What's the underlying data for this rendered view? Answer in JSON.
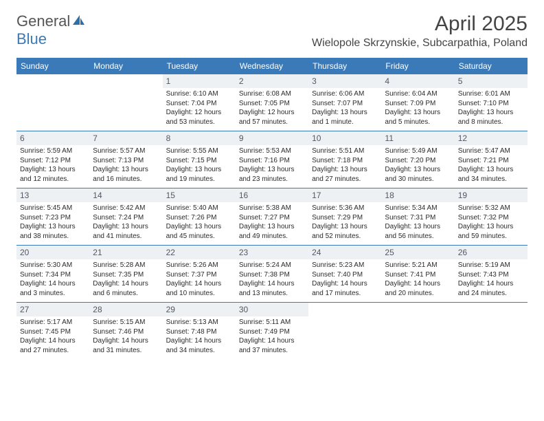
{
  "brand": {
    "name_1": "General",
    "name_2": "Blue"
  },
  "title": "April 2025",
  "location": "Wielopole Skrzynskie, Subcarpathia, Poland",
  "colors": {
    "header_bg": "#3a7ab8",
    "header_text": "#ffffff",
    "daynum_bg": "#eef1f3",
    "border": "#3a7ab8",
    "body_text": "#2a2a2a",
    "title_text": "#444444"
  },
  "typography": {
    "month_title_fontsize": 30,
    "location_fontsize": 16,
    "day_header_fontsize": 12,
    "cell_fontsize": 10
  },
  "day_names": [
    "Sunday",
    "Monday",
    "Tuesday",
    "Wednesday",
    "Thursday",
    "Friday",
    "Saturday"
  ],
  "weeks": [
    [
      {
        "n": "",
        "sunrise": "",
        "sunset": "",
        "daylight": ""
      },
      {
        "n": "",
        "sunrise": "",
        "sunset": "",
        "daylight": ""
      },
      {
        "n": "1",
        "sunrise": "Sunrise: 6:10 AM",
        "sunset": "Sunset: 7:04 PM",
        "daylight": "Daylight: 12 hours and 53 minutes."
      },
      {
        "n": "2",
        "sunrise": "Sunrise: 6:08 AM",
        "sunset": "Sunset: 7:05 PM",
        "daylight": "Daylight: 12 hours and 57 minutes."
      },
      {
        "n": "3",
        "sunrise": "Sunrise: 6:06 AM",
        "sunset": "Sunset: 7:07 PM",
        "daylight": "Daylight: 13 hours and 1 minute."
      },
      {
        "n": "4",
        "sunrise": "Sunrise: 6:04 AM",
        "sunset": "Sunset: 7:09 PM",
        "daylight": "Daylight: 13 hours and 5 minutes."
      },
      {
        "n": "5",
        "sunrise": "Sunrise: 6:01 AM",
        "sunset": "Sunset: 7:10 PM",
        "daylight": "Daylight: 13 hours and 8 minutes."
      }
    ],
    [
      {
        "n": "6",
        "sunrise": "Sunrise: 5:59 AM",
        "sunset": "Sunset: 7:12 PM",
        "daylight": "Daylight: 13 hours and 12 minutes."
      },
      {
        "n": "7",
        "sunrise": "Sunrise: 5:57 AM",
        "sunset": "Sunset: 7:13 PM",
        "daylight": "Daylight: 13 hours and 16 minutes."
      },
      {
        "n": "8",
        "sunrise": "Sunrise: 5:55 AM",
        "sunset": "Sunset: 7:15 PM",
        "daylight": "Daylight: 13 hours and 19 minutes."
      },
      {
        "n": "9",
        "sunrise": "Sunrise: 5:53 AM",
        "sunset": "Sunset: 7:16 PM",
        "daylight": "Daylight: 13 hours and 23 minutes."
      },
      {
        "n": "10",
        "sunrise": "Sunrise: 5:51 AM",
        "sunset": "Sunset: 7:18 PM",
        "daylight": "Daylight: 13 hours and 27 minutes."
      },
      {
        "n": "11",
        "sunrise": "Sunrise: 5:49 AM",
        "sunset": "Sunset: 7:20 PM",
        "daylight": "Daylight: 13 hours and 30 minutes."
      },
      {
        "n": "12",
        "sunrise": "Sunrise: 5:47 AM",
        "sunset": "Sunset: 7:21 PM",
        "daylight": "Daylight: 13 hours and 34 minutes."
      }
    ],
    [
      {
        "n": "13",
        "sunrise": "Sunrise: 5:45 AM",
        "sunset": "Sunset: 7:23 PM",
        "daylight": "Daylight: 13 hours and 38 minutes."
      },
      {
        "n": "14",
        "sunrise": "Sunrise: 5:42 AM",
        "sunset": "Sunset: 7:24 PM",
        "daylight": "Daylight: 13 hours and 41 minutes."
      },
      {
        "n": "15",
        "sunrise": "Sunrise: 5:40 AM",
        "sunset": "Sunset: 7:26 PM",
        "daylight": "Daylight: 13 hours and 45 minutes."
      },
      {
        "n": "16",
        "sunrise": "Sunrise: 5:38 AM",
        "sunset": "Sunset: 7:27 PM",
        "daylight": "Daylight: 13 hours and 49 minutes."
      },
      {
        "n": "17",
        "sunrise": "Sunrise: 5:36 AM",
        "sunset": "Sunset: 7:29 PM",
        "daylight": "Daylight: 13 hours and 52 minutes."
      },
      {
        "n": "18",
        "sunrise": "Sunrise: 5:34 AM",
        "sunset": "Sunset: 7:31 PM",
        "daylight": "Daylight: 13 hours and 56 minutes."
      },
      {
        "n": "19",
        "sunrise": "Sunrise: 5:32 AM",
        "sunset": "Sunset: 7:32 PM",
        "daylight": "Daylight: 13 hours and 59 minutes."
      }
    ],
    [
      {
        "n": "20",
        "sunrise": "Sunrise: 5:30 AM",
        "sunset": "Sunset: 7:34 PM",
        "daylight": "Daylight: 14 hours and 3 minutes."
      },
      {
        "n": "21",
        "sunrise": "Sunrise: 5:28 AM",
        "sunset": "Sunset: 7:35 PM",
        "daylight": "Daylight: 14 hours and 6 minutes."
      },
      {
        "n": "22",
        "sunrise": "Sunrise: 5:26 AM",
        "sunset": "Sunset: 7:37 PM",
        "daylight": "Daylight: 14 hours and 10 minutes."
      },
      {
        "n": "23",
        "sunrise": "Sunrise: 5:24 AM",
        "sunset": "Sunset: 7:38 PM",
        "daylight": "Daylight: 14 hours and 13 minutes."
      },
      {
        "n": "24",
        "sunrise": "Sunrise: 5:23 AM",
        "sunset": "Sunset: 7:40 PM",
        "daylight": "Daylight: 14 hours and 17 minutes."
      },
      {
        "n": "25",
        "sunrise": "Sunrise: 5:21 AM",
        "sunset": "Sunset: 7:41 PM",
        "daylight": "Daylight: 14 hours and 20 minutes."
      },
      {
        "n": "26",
        "sunrise": "Sunrise: 5:19 AM",
        "sunset": "Sunset: 7:43 PM",
        "daylight": "Daylight: 14 hours and 24 minutes."
      }
    ],
    [
      {
        "n": "27",
        "sunrise": "Sunrise: 5:17 AM",
        "sunset": "Sunset: 7:45 PM",
        "daylight": "Daylight: 14 hours and 27 minutes."
      },
      {
        "n": "28",
        "sunrise": "Sunrise: 5:15 AM",
        "sunset": "Sunset: 7:46 PM",
        "daylight": "Daylight: 14 hours and 31 minutes."
      },
      {
        "n": "29",
        "sunrise": "Sunrise: 5:13 AM",
        "sunset": "Sunset: 7:48 PM",
        "daylight": "Daylight: 14 hours and 34 minutes."
      },
      {
        "n": "30",
        "sunrise": "Sunrise: 5:11 AM",
        "sunset": "Sunset: 7:49 PM",
        "daylight": "Daylight: 14 hours and 37 minutes."
      },
      {
        "n": "",
        "sunrise": "",
        "sunset": "",
        "daylight": ""
      },
      {
        "n": "",
        "sunrise": "",
        "sunset": "",
        "daylight": ""
      },
      {
        "n": "",
        "sunrise": "",
        "sunset": "",
        "daylight": ""
      }
    ]
  ]
}
